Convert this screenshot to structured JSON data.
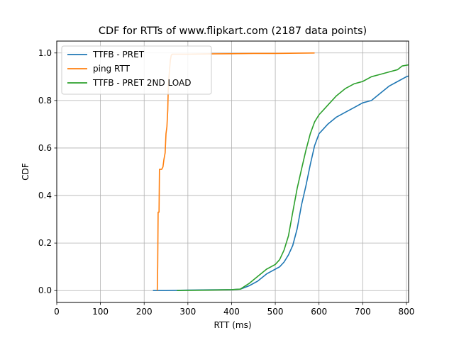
{
  "chart_data": {
    "type": "line",
    "title": "CDF for RTTs of www.flipkart.com (2187 data points)",
    "xlabel": "RTT (ms)",
    "ylabel": "CDF",
    "xlim": [
      0,
      805
    ],
    "ylim": [
      -0.05,
      1.05
    ],
    "xticks": [
      0,
      100,
      200,
      300,
      400,
      500,
      600,
      700,
      800
    ],
    "yticks": [
      0.0,
      0.2,
      0.4,
      0.6,
      0.8,
      1.0
    ],
    "grid": true,
    "legend_position": "top-left",
    "series": [
      {
        "name": "TTFB - PRET",
        "color": "#1f77b4",
        "x": [
          220,
          250,
          300,
          350,
          400,
          420,
          440,
          460,
          480,
          500,
          510,
          520,
          530,
          540,
          550,
          560,
          570,
          580,
          590,
          600,
          610,
          620,
          640,
          660,
          680,
          700,
          720,
          740,
          760,
          780,
          800,
          805
        ],
        "y": [
          0.0,
          0.0,
          0.002,
          0.003,
          0.004,
          0.006,
          0.02,
          0.04,
          0.07,
          0.09,
          0.1,
          0.12,
          0.15,
          0.19,
          0.26,
          0.36,
          0.44,
          0.53,
          0.61,
          0.66,
          0.68,
          0.7,
          0.73,
          0.75,
          0.77,
          0.79,
          0.8,
          0.83,
          0.86,
          0.88,
          0.9,
          0.903
        ]
      },
      {
        "name": "ping RTT",
        "color": "#ff7f0e",
        "x": [
          230,
          231,
          232,
          234,
          235,
          237,
          240,
          243,
          245,
          248,
          250,
          252,
          254,
          255,
          256,
          258,
          260,
          262,
          264,
          270,
          300,
          350,
          400,
          450,
          500,
          550,
          590
        ],
        "y": [
          0.0,
          0.1,
          0.33,
          0.33,
          0.51,
          0.51,
          0.51,
          0.52,
          0.55,
          0.58,
          0.66,
          0.69,
          0.76,
          0.84,
          0.88,
          0.93,
          0.97,
          0.99,
          0.995,
          0.995,
          0.995,
          0.996,
          0.997,
          0.998,
          0.998,
          0.999,
          1.0
        ]
      },
      {
        "name": "TTFB - PRET 2ND LOAD",
        "color": "#2ca02c",
        "x": [
          275,
          300,
          350,
          400,
          420,
          440,
          460,
          480,
          500,
          510,
          520,
          530,
          540,
          550,
          560,
          570,
          580,
          590,
          600,
          610,
          620,
          640,
          660,
          680,
          700,
          720,
          740,
          760,
          780,
          790,
          805
        ],
        "y": [
          0.0,
          0.001,
          0.002,
          0.004,
          0.006,
          0.03,
          0.06,
          0.09,
          0.11,
          0.13,
          0.17,
          0.23,
          0.33,
          0.43,
          0.51,
          0.59,
          0.66,
          0.71,
          0.74,
          0.76,
          0.78,
          0.82,
          0.85,
          0.87,
          0.88,
          0.9,
          0.91,
          0.92,
          0.93,
          0.945,
          0.95
        ]
      }
    ]
  }
}
